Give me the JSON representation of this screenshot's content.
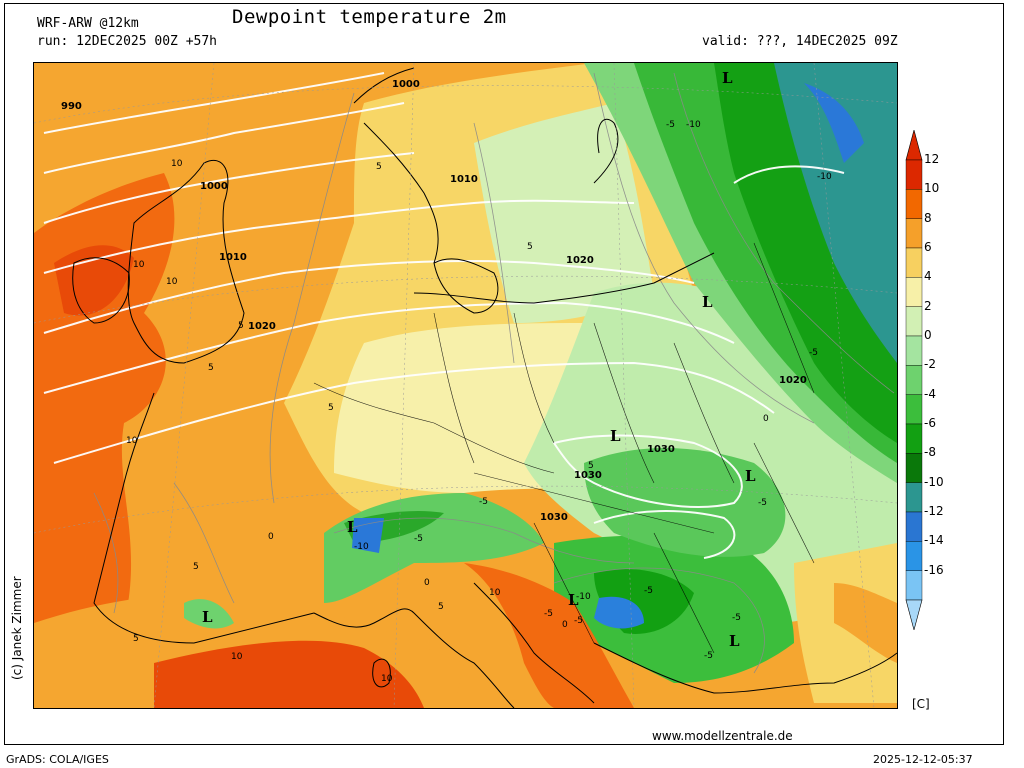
{
  "header": {
    "model": "WRF-ARW @12km",
    "title": "Dewpoint temperature 2m",
    "run": "run: 12DEC2025 00Z +57h",
    "valid": "valid: ???, 14DEC2025 09Z"
  },
  "legend": {
    "colors": [
      "#dc2800",
      "#f26800",
      "#f5a02a",
      "#f7d060",
      "#f7f0a8",
      "#d2f0b4",
      "#a4e4a0",
      "#6ed26e",
      "#3cbe3c",
      "#12a012",
      "#0a780a",
      "#2c9690",
      "#2a76d2",
      "#2a94e6",
      "#7ac4f4"
    ],
    "top_color": "#dc2800",
    "bottom_color": "#a8d8f8",
    "ticks": [
      "12",
      "10",
      "8",
      "6",
      "4",
      "2",
      "0",
      "-2",
      "-4",
      "-6",
      "-8",
      "-10",
      "-12",
      "-14",
      "-16"
    ],
    "unit": "[C]"
  },
  "map": {
    "isobar_labels": [
      "990",
      "1000",
      "1000",
      "1010",
      "1010",
      "1020",
      "1020",
      "1020",
      "1030",
      "1030",
      "1030"
    ],
    "dewpoint_labels": [
      "10",
      "10",
      "10",
      "10",
      "10",
      "10",
      "10",
      "5",
      "5",
      "5",
      "5",
      "5",
      "5",
      "5",
      "5",
      "5",
      "0",
      "0",
      "0",
      "0",
      "-5",
      "-5",
      "-5",
      "-5",
      "-5",
      "-5",
      "-5",
      "-5",
      "-5",
      "-5",
      "-10",
      "-10",
      "-10",
      "-10"
    ],
    "pressure_centers": [
      "L",
      "L",
      "L",
      "L",
      "L",
      "L",
      "L",
      "L"
    ]
  },
  "credit": "(c) Janek Zimmer",
  "website": "www.modellzentrale.de",
  "footer": {
    "software": "GrADS: COLA/IGES",
    "timestamp": "2025-12-12-05:37"
  }
}
